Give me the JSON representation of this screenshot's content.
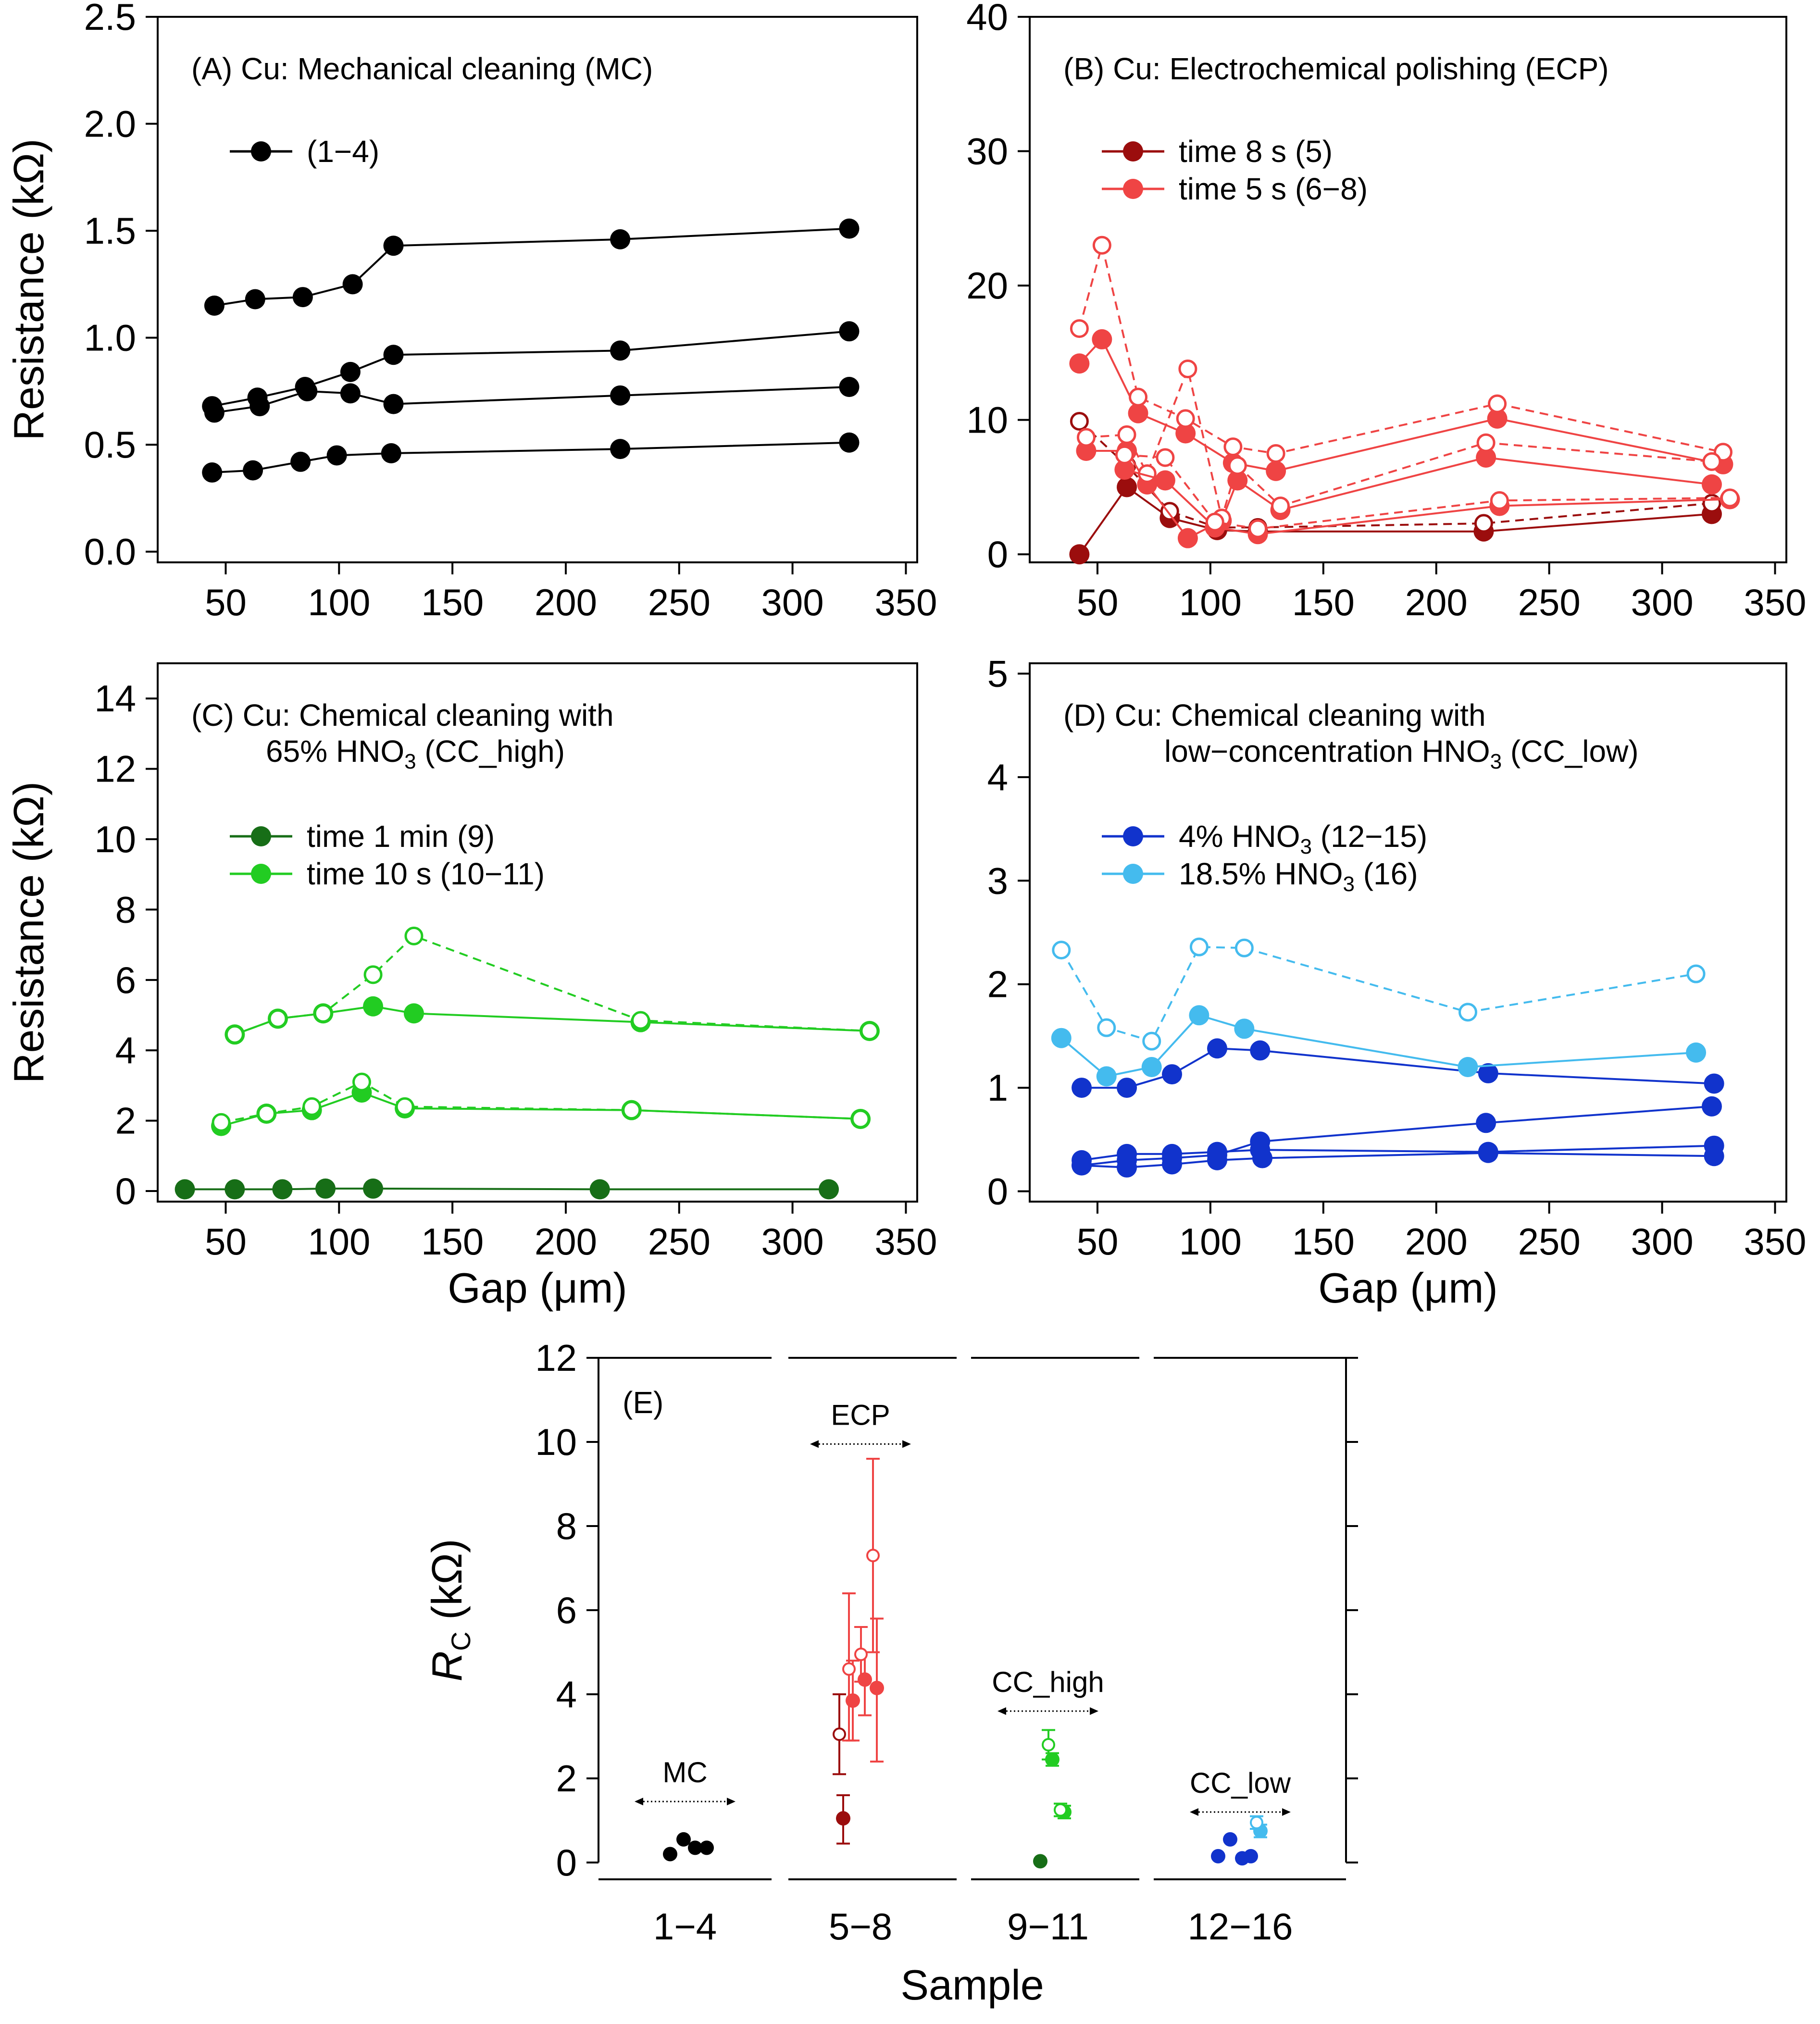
{
  "chart_data": [
    {
      "id": "A",
      "type": "line",
      "title": "(A) Cu: Mechanical cleaning (MC)",
      "ylabel": "Resistance (kΩ)",
      "xlabel": "",
      "xlim": [
        20,
        355
      ],
      "ylim": [
        -0.05,
        2.5
      ],
      "xticks": [
        "50",
        "100",
        "150",
        "200",
        "250",
        "300",
        "350"
      ],
      "yticks": [
        "0.0",
        "0.5",
        "1.0",
        "1.5",
        "2.0",
        "2.5"
      ],
      "legend": [
        {
          "label": "(1−4)",
          "color": "#000000"
        }
      ],
      "series": [
        {
          "name": "1",
          "color": "#000000",
          "style": "solid",
          "marker": "filled",
          "x": [
            45,
            63,
            84,
            106,
            124,
            224,
            325
          ],
          "y": [
            1.15,
            1.18,
            1.19,
            1.25,
            1.43,
            1.46,
            1.51
          ]
        },
        {
          "name": "2",
          "color": "#000000",
          "style": "solid",
          "marker": "filled",
          "x": [
            44,
            64,
            85,
            105,
            124,
            224,
            325
          ],
          "y": [
            0.68,
            0.72,
            0.77,
            0.84,
            0.92,
            0.94,
            1.03
          ]
        },
        {
          "name": "3",
          "color": "#000000",
          "style": "solid",
          "marker": "filled",
          "x": [
            45,
            65,
            86,
            105,
            124,
            224,
            325
          ],
          "y": [
            0.65,
            0.68,
            0.75,
            0.74,
            0.69,
            0.73,
            0.77
          ]
        },
        {
          "name": "4",
          "color": "#000000",
          "style": "solid",
          "marker": "filled",
          "x": [
            44,
            62,
            83,
            99,
            123,
            224,
            325
          ],
          "y": [
            0.37,
            0.38,
            0.42,
            0.45,
            0.46,
            0.48,
            0.51
          ]
        }
      ]
    },
    {
      "id": "B",
      "type": "line",
      "title": "(B) Cu: Electrochemical polishing (ECP)",
      "ylabel": "",
      "xlabel": "",
      "xlim": [
        20,
        355
      ],
      "ylim": [
        -0.6,
        40
      ],
      "xticks": [
        "50",
        "100",
        "150",
        "200",
        "250",
        "300",
        "350"
      ],
      "yticks": [
        "0",
        "10",
        "20",
        "30",
        "40"
      ],
      "legend": [
        {
          "label": "time 8 s (5)",
          "color": "#9b0d0d"
        },
        {
          "label": "time 5 s (6−8)",
          "color": "#ef4444"
        }
      ],
      "series": [
        {
          "name": "5",
          "color": "#9b0d0d",
          "style": "solid",
          "marker": "filled",
          "x": [
            42,
            63,
            82,
            103,
            121,
            221,
            322
          ],
          "y": [
            0.0,
            5.0,
            2.7,
            1.8,
            1.7,
            1.7,
            3.0
          ]
        },
        {
          "name": "5",
          "color": "#9b0d0d",
          "style": "dashed",
          "marker": "open",
          "x": [
            42,
            63,
            82,
            103,
            121,
            221,
            322
          ],
          "y": [
            9.9,
            6.6,
            3.2,
            2.0,
            2.0,
            2.3,
            3.8
          ]
        },
        {
          "name": "6",
          "color": "#ef4444",
          "style": "solid",
          "marker": "filled",
          "x": [
            42,
            52,
            68,
            89,
            110,
            129,
            227,
            327
          ],
          "y": [
            14.2,
            16.0,
            10.5,
            9.0,
            6.8,
            6.2,
            10.1,
            6.7
          ]
        },
        {
          "name": "6",
          "color": "#ef4444",
          "style": "dashed",
          "marker": "open",
          "x": [
            42,
            52,
            68,
            89,
            110,
            129,
            227,
            327
          ],
          "y": [
            16.8,
            23.0,
            11.7,
            10.1,
            8.0,
            7.5,
            11.2,
            7.6
          ]
        },
        {
          "name": "7",
          "color": "#ef4444",
          "style": "solid",
          "marker": "filled",
          "x": [
            45,
            63,
            72,
            90,
            105,
            112,
            131,
            222,
            322
          ],
          "y": [
            7.7,
            7.7,
            5.2,
            1.2,
            2.5,
            5.5,
            3.3,
            7.2,
            5.2
          ]
        },
        {
          "name": "7",
          "color": "#ef4444",
          "style": "dashed",
          "marker": "open",
          "x": [
            45,
            63,
            72,
            90,
            105,
            112,
            131,
            222,
            322
          ],
          "y": [
            8.7,
            8.9,
            6.0,
            13.8,
            2.7,
            6.6,
            3.6,
            8.3,
            6.9
          ]
        },
        {
          "name": "8",
          "color": "#ef4444",
          "style": "solid",
          "marker": "filled",
          "x": [
            62,
            80,
            102,
            121,
            228,
            330
          ],
          "y": [
            6.3,
            5.5,
            2.0,
            1.5,
            3.6,
            4.1
          ]
        },
        {
          "name": "8",
          "color": "#ef4444",
          "style": "dashed",
          "marker": "open",
          "x": [
            62,
            80,
            102,
            121,
            228,
            330
          ],
          "y": [
            7.4,
            7.2,
            2.4,
            1.9,
            4.0,
            4.2
          ]
        }
      ]
    },
    {
      "id": "C",
      "type": "line",
      "title": "(C) Cu: Chemical cleaning with",
      "title_line2": "65% HNO",
      "title_line2_sub": "3",
      "title_line2_tail": " (CC_high)",
      "ylabel": "Resistance (kΩ)",
      "xlabel": "Gap (μm)",
      "xlim": [
        20,
        355
      ],
      "ylim": [
        -0.3,
        15
      ],
      "xticks": [
        "50",
        "100",
        "150",
        "200",
        "250",
        "300",
        "350"
      ],
      "yticks": [
        "0",
        "2",
        "4",
        "6",
        "8",
        "10",
        "12",
        "14"
      ],
      "legend": [
        {
          "label": "time 1 min (9)",
          "color": "#176e17"
        },
        {
          "label": "time 10 s (10−11)",
          "color": "#22cc22"
        }
      ],
      "series": [
        {
          "name": "9",
          "color": "#176e17",
          "style": "solid",
          "marker": "filled",
          "x": [
            32,
            54,
            75,
            94,
            115,
            215,
            316
          ],
          "y": [
            0.05,
            0.05,
            0.05,
            0.07,
            0.07,
            0.05,
            0.05
          ]
        },
        {
          "name": "10",
          "color": "#22cc22",
          "style": "solid",
          "marker": "filled",
          "x": [
            54,
            73,
            93,
            115,
            133,
            233,
            334
          ],
          "y": [
            4.45,
            4.9,
            5.05,
            5.25,
            5.05,
            4.8,
            4.55
          ]
        },
        {
          "name": "10",
          "color": "#22cc22",
          "style": "dashed",
          "marker": "open",
          "x": [
            54,
            73,
            93,
            115,
            133,
            233,
            334
          ],
          "y": [
            4.45,
            4.9,
            5.05,
            6.15,
            7.25,
            4.85,
            4.55
          ]
        },
        {
          "name": "11",
          "color": "#22cc22",
          "style": "solid",
          "marker": "filled",
          "x": [
            48,
            68,
            88,
            110,
            129,
            229,
            330
          ],
          "y": [
            1.85,
            2.2,
            2.3,
            2.8,
            2.35,
            2.3,
            2.05
          ]
        },
        {
          "name": "11",
          "color": "#22cc22",
          "style": "dashed",
          "marker": "open",
          "x": [
            48,
            68,
            88,
            110,
            129,
            229,
            330
          ],
          "y": [
            1.95,
            2.2,
            2.4,
            3.1,
            2.4,
            2.3,
            2.05
          ]
        }
      ]
    },
    {
      "id": "D",
      "type": "line",
      "title": "(D) Cu: Chemical cleaning with",
      "title_line2": "low−concentration HNO",
      "title_line2_sub": "3",
      "title_line2_tail": " (CC_low)",
      "ylabel": "",
      "xlabel": "Gap (μm)",
      "xlim": [
        20,
        355
      ],
      "ylim": [
        -0.1,
        5.1
      ],
      "xticks": [
        "50",
        "100",
        "150",
        "200",
        "250",
        "300",
        "350"
      ],
      "yticks": [
        "0",
        "1",
        "2",
        "3",
        "4",
        "5"
      ],
      "legend": [
        {
          "label": "4% HNO",
          "sub": "3",
          "tail": " (12−15)",
          "color": "#1133cc"
        },
        {
          "label": "18.5% HNO",
          "sub": "3",
          "tail": " (16)",
          "color": "#44bbee"
        }
      ],
      "series": [
        {
          "name": "12",
          "color": "#1133cc",
          "style": "solid",
          "marker": "filled",
          "x": [
            43,
            63,
            83,
            103,
            122,
            223,
            323
          ],
          "y": [
            1.0,
            1.0,
            1.13,
            1.38,
            1.36,
            1.14,
            1.04
          ]
        },
        {
          "name": "13",
          "color": "#1133cc",
          "style": "solid",
          "marker": "filled",
          "x": [
            43,
            63,
            83,
            103,
            122,
            222,
            322
          ],
          "y": [
            0.25,
            0.3,
            0.32,
            0.35,
            0.48,
            0.66,
            0.82
          ]
        },
        {
          "name": "14",
          "color": "#1133cc",
          "style": "solid",
          "marker": "filled",
          "x": [
            43,
            63,
            83,
            103,
            122,
            223,
            323
          ],
          "y": [
            0.3,
            0.36,
            0.36,
            0.38,
            0.4,
            0.38,
            0.44
          ]
        },
        {
          "name": "15",
          "color": "#1133cc",
          "style": "solid",
          "marker": "filled",
          "x": [
            43,
            63,
            83,
            103,
            123,
            223,
            323
          ],
          "y": [
            0.25,
            0.23,
            0.26,
            0.3,
            0.32,
            0.37,
            0.34
          ]
        },
        {
          "name": "16",
          "color": "#44bbee",
          "style": "solid",
          "marker": "filled",
          "x": [
            34,
            54,
            74,
            95,
            115,
            214,
            315
          ],
          "y": [
            1.48,
            1.11,
            1.2,
            1.7,
            1.57,
            1.2,
            1.34
          ]
        },
        {
          "name": "16",
          "color": "#44bbee",
          "style": "dashed",
          "marker": "open",
          "x": [
            34,
            54,
            74,
            95,
            115,
            214,
            315
          ],
          "y": [
            2.33,
            1.58,
            1.45,
            2.36,
            2.35,
            1.73,
            2.1
          ]
        }
      ]
    },
    {
      "id": "E",
      "type": "scatter",
      "title": "(E)",
      "ylabel_main": "R",
      "ylabel_sub": "C",
      "ylabel_tail": " (kΩ)",
      "xlabel": "Sample",
      "ylim": [
        -0.4,
        12
      ],
      "yticks": [
        "0",
        "2",
        "4",
        "6",
        "8",
        "10",
        "12"
      ],
      "groups": [
        {
          "label": "1−4",
          "tag": "MC",
          "tag_y": 1.45
        },
        {
          "label": "5−8",
          "tag": "ECP",
          "tag_y": 9.95
        },
        {
          "label": "9−11",
          "tag": "CC_high",
          "tag_y": 3.6
        },
        {
          "label": "12−16",
          "tag": "CC_low",
          "tag_y": 1.2
        }
      ],
      "points": [
        {
          "sample": 1,
          "group": 0,
          "y": 0.2,
          "color": "#000000",
          "marker": "filled"
        },
        {
          "sample": 2,
          "group": 0,
          "y": 0.55,
          "color": "#000000",
          "marker": "filled"
        },
        {
          "sample": 3,
          "group": 0,
          "y": 0.35,
          "color": "#000000",
          "marker": "filled"
        },
        {
          "sample": 4,
          "group": 0,
          "y": 0.35,
          "color": "#000000",
          "marker": "filled"
        },
        {
          "sample": 5,
          "group": 1,
          "y": 1.05,
          "err": [
            0.45,
            1.6
          ],
          "color": "#9b0d0d",
          "marker": "filled"
        },
        {
          "sample": 5,
          "group": 1,
          "y": 3.05,
          "err": [
            2.1,
            4.0
          ],
          "color": "#9b0d0d",
          "marker": "open"
        },
        {
          "sample": 6,
          "group": 1,
          "y": 3.85,
          "err": [
            2.9,
            4.8
          ],
          "color": "#ef4444",
          "marker": "filled"
        },
        {
          "sample": 6,
          "group": 1,
          "y": 4.6,
          "err": [
            2.9,
            6.4
          ],
          "color": "#ef4444",
          "marker": "open"
        },
        {
          "sample": 7,
          "group": 1,
          "y": 4.35,
          "err": [
            3.5,
            5.0
          ],
          "color": "#ef4444",
          "marker": "filled"
        },
        {
          "sample": 7,
          "group": 1,
          "y": 4.95,
          "err": [
            4.3,
            5.6
          ],
          "color": "#ef4444",
          "marker": "open"
        },
        {
          "sample": 8,
          "group": 1,
          "y": 4.15,
          "err": [
            2.4,
            5.8
          ],
          "color": "#ef4444",
          "marker": "filled"
        },
        {
          "sample": 8,
          "group": 1,
          "y": 7.3,
          "err": [
            5.0,
            9.6
          ],
          "color": "#ef4444",
          "marker": "open"
        },
        {
          "sample": 9,
          "group": 2,
          "y": 0.03,
          "color": "#176e17",
          "marker": "filled"
        },
        {
          "sample": 10,
          "group": 2,
          "y": 2.45,
          "err": [
            2.3,
            2.6
          ],
          "color": "#22cc22",
          "marker": "filled"
        },
        {
          "sample": 10,
          "group": 2,
          "y": 2.8,
          "err": [
            2.45,
            3.15
          ],
          "color": "#22cc22",
          "marker": "open"
        },
        {
          "sample": 11,
          "group": 2,
          "y": 1.2,
          "err": [
            1.05,
            1.35
          ],
          "color": "#22cc22",
          "marker": "filled"
        },
        {
          "sample": 11,
          "group": 2,
          "y": 1.25,
          "err": [
            1.1,
            1.4
          ],
          "color": "#22cc22",
          "marker": "open"
        },
        {
          "sample": 12,
          "group": 3,
          "y": 0.15,
          "color": "#1133cc",
          "marker": "filled"
        },
        {
          "sample": 13,
          "group": 3,
          "y": 0.55,
          "color": "#1133cc",
          "marker": "filled"
        },
        {
          "sample": 14,
          "group": 3,
          "y": 0.1,
          "color": "#1133cc",
          "marker": "filled"
        },
        {
          "sample": 15,
          "group": 3,
          "y": 0.15,
          "color": "#1133cc",
          "marker": "filled"
        },
        {
          "sample": 16,
          "group": 3,
          "y": 0.75,
          "err": [
            0.6,
            0.9
          ],
          "color": "#44bbee",
          "marker": "filled"
        },
        {
          "sample": 16,
          "group": 3,
          "y": 0.95,
          "err": [
            0.8,
            1.1
          ],
          "color": "#44bbee",
          "marker": "open"
        }
      ]
    }
  ]
}
